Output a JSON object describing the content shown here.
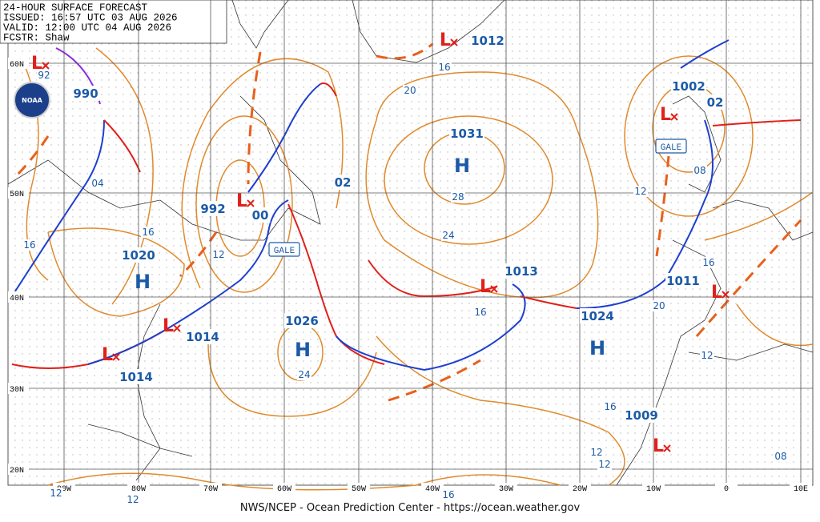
{
  "header": {
    "title": "24-HOUR SURFACE FORECAST",
    "issued": "ISSUED: 16:57 UTC 03 AUG 2026",
    "valid": "VALID:  12:00 UTC 04 AUG 2026",
    "forecaster": "FCSTR:  Shaw"
  },
  "logo": "NOAA",
  "highs": [
    {
      "symbol": "H",
      "pressure": "1031"
    },
    {
      "symbol": "H",
      "pressure": "1026"
    },
    {
      "symbol": "H",
      "pressure": "1024"
    },
    {
      "symbol": "H",
      "pressure": "1020"
    }
  ],
  "lows": [
    {
      "symbol": "L",
      "pressure": "1012"
    },
    {
      "symbol": "L",
      "pressure": "1002"
    },
    {
      "symbol": "L",
      "pressure": "992"
    },
    {
      "symbol": "L",
      "pressure": "1013"
    },
    {
      "symbol": "L",
      "pressure": "1011"
    },
    {
      "symbol": "L",
      "pressure": "1014"
    },
    {
      "symbol": "L",
      "pressure": "1014"
    },
    {
      "symbol": "L",
      "pressure": "1009"
    },
    {
      "symbol": "L",
      "pressure": "990"
    }
  ],
  "forecast_pressures": [
    "02",
    "02",
    "00"
  ],
  "isobar_labels": [
    "16",
    "20",
    "28",
    "24",
    "16",
    "24",
    "16",
    "16",
    "12",
    "04",
    "08",
    "12",
    "16",
    "20",
    "12",
    "16",
    "12",
    "12",
    "08",
    "12",
    "12",
    "16",
    "92"
  ],
  "gale_warnings": [
    "GALE",
    "GALE"
  ],
  "latitudes": [
    "60N",
    "50N",
    "40N",
    "30N",
    "20N"
  ],
  "longitudes": [
    "90W",
    "80W",
    "70W",
    "60W",
    "50W",
    "40W",
    "30W",
    "20W",
    "10W",
    "0",
    "10E"
  ],
  "footer": "NWS/NCEP - Ocean Prediction Center - https://ocean.weather.gov"
}
